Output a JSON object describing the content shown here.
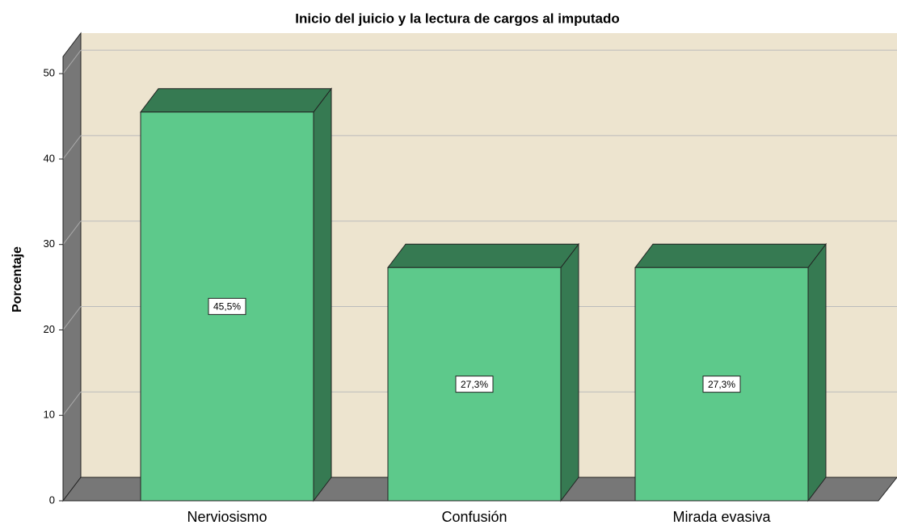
{
  "chart_data": {
    "type": "bar3d",
    "title": "Inicio del juicio y la lectura de cargos al imputado",
    "y_label": "Porcentaje",
    "categories": [
      "Nerviosismo",
      "Confusión",
      "Mirada evasiva"
    ],
    "values": [
      45.5,
      27.3,
      27.3
    ],
    "value_labels": [
      "45,5%",
      "27,3%",
      "27,3%"
    ],
    "color": "#5dc98b",
    "side_color": "#367a52",
    "ylim": [
      0,
      52
    ],
    "yticks": [
      0,
      10,
      20,
      30,
      40,
      50
    ],
    "grid": true
  }
}
